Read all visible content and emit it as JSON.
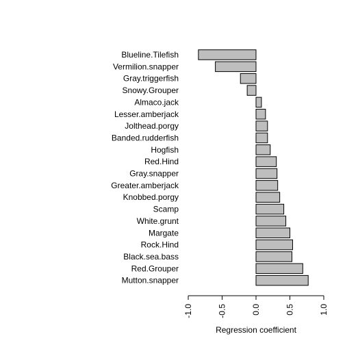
{
  "chart_data": {
    "type": "bar",
    "orientation": "horizontal",
    "title": "",
    "xlabel": "Regression coefficient",
    "ylabel": "",
    "xlim": [
      -1.0,
      1.0
    ],
    "xticks": [
      -1.0,
      -0.5,
      0.0,
      0.5,
      1.0
    ],
    "xtick_labels": [
      "-1.0",
      "-0.5",
      "0.0",
      "0.5",
      "1.0"
    ],
    "bar_fill": "#bebebe",
    "bar_stroke": "#000000",
    "categories": [
      "Blueline.Tilefish",
      "Vermilion.snapper",
      "Gray.triggerfish",
      "Snowy.Grouper",
      "Almaco.jack",
      "Lesser.amberjack",
      "Jolthead.porgy",
      "Banded.rudderfish",
      "Hogfish",
      "Red.Hind",
      "Gray.snapper",
      "Greater.amberjack",
      "Knobbed.porgy",
      "Scamp",
      "White.grunt",
      "Margate",
      "Rock.Hind",
      "Black.sea.bass",
      "Red.Grouper",
      "Mutton.snapper"
    ],
    "values": [
      -0.85,
      -0.6,
      -0.23,
      -0.13,
      0.08,
      0.14,
      0.17,
      0.17,
      0.21,
      0.3,
      0.31,
      0.32,
      0.35,
      0.41,
      0.44,
      0.5,
      0.54,
      0.53,
      0.69,
      0.77
    ]
  }
}
